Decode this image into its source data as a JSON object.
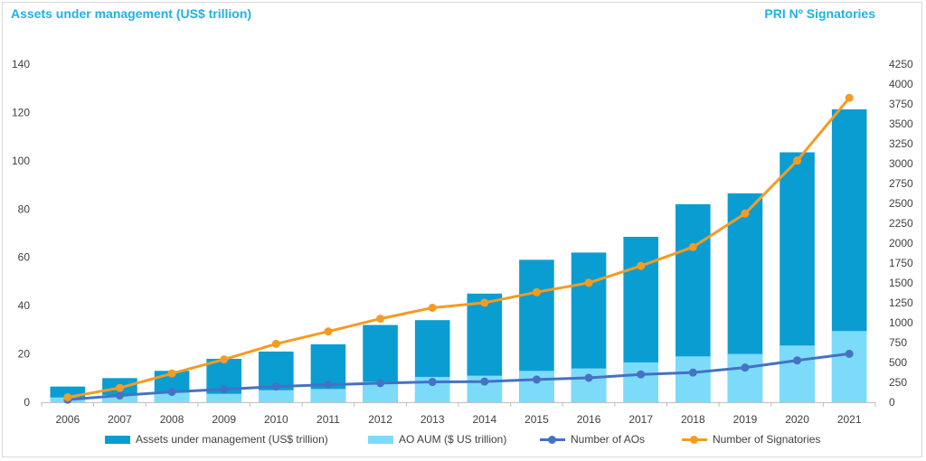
{
  "titles": {
    "left": "Assets under management (US$ trillion)",
    "right": "PRI Nº Signatories"
  },
  "colors": {
    "aum": "#0a9dd2",
    "ao_aum": "#7ddbfa",
    "aos": "#4472c4",
    "signatories": "#f59b23",
    "title": "#1fb1e6"
  },
  "chart_data": {
    "type": "bar",
    "categories": [
      "2006",
      "2007",
      "2008",
      "2009",
      "2010",
      "2011",
      "2012",
      "2013",
      "2014",
      "2015",
      "2016",
      "2017",
      "2018",
      "2019",
      "2020",
      "2021"
    ],
    "series": [
      {
        "name": "Assets under management (US$ trillion)",
        "kind": "bar",
        "axis": "left",
        "values": [
          6.5,
          10,
          13,
          18,
          21,
          24,
          32,
          34,
          45,
          59,
          62,
          68.5,
          82,
          86.5,
          103.5,
          121.3
        ]
      },
      {
        "name": "AO AUM ($ US trillion)",
        "kind": "bar",
        "axis": "left",
        "values": [
          2,
          3,
          4,
          3.5,
          5,
          5.5,
          8.5,
          10.5,
          11,
          13,
          14,
          16.5,
          19,
          20,
          23.5,
          29.5
        ]
      },
      {
        "name": "Number of AOs",
        "kind": "line",
        "axis": "right",
        "values": [
          32,
          85,
          130,
          163,
          198,
          220,
          240,
          255,
          260,
          285,
          307,
          350,
          373,
          436,
          526,
          609
        ]
      },
      {
        "name": "Number of Signatories",
        "kind": "line",
        "axis": "right",
        "values": [
          63,
          181,
          362,
          538,
          734,
          890,
          1050,
          1188,
          1251,
          1384,
          1501,
          1714,
          1951,
          2372,
          3038,
          3826
        ]
      }
    ],
    "yleft": {
      "min": 0,
      "max": 140,
      "step": 20,
      "ticks": [
        "0",
        "20",
        "40",
        "60",
        "80",
        "100",
        "120",
        "140"
      ]
    },
    "yright": {
      "min": 0,
      "max": 4250,
      "step": 250,
      "ticks": [
        "0",
        "250",
        "500",
        "750",
        "1000",
        "1250",
        "1500",
        "1750",
        "2000",
        "2250",
        "2500",
        "2750",
        "3000",
        "3250",
        "3500",
        "3750",
        "4000",
        "4250"
      ]
    },
    "grid": false,
    "legend_position": "bottom"
  }
}
